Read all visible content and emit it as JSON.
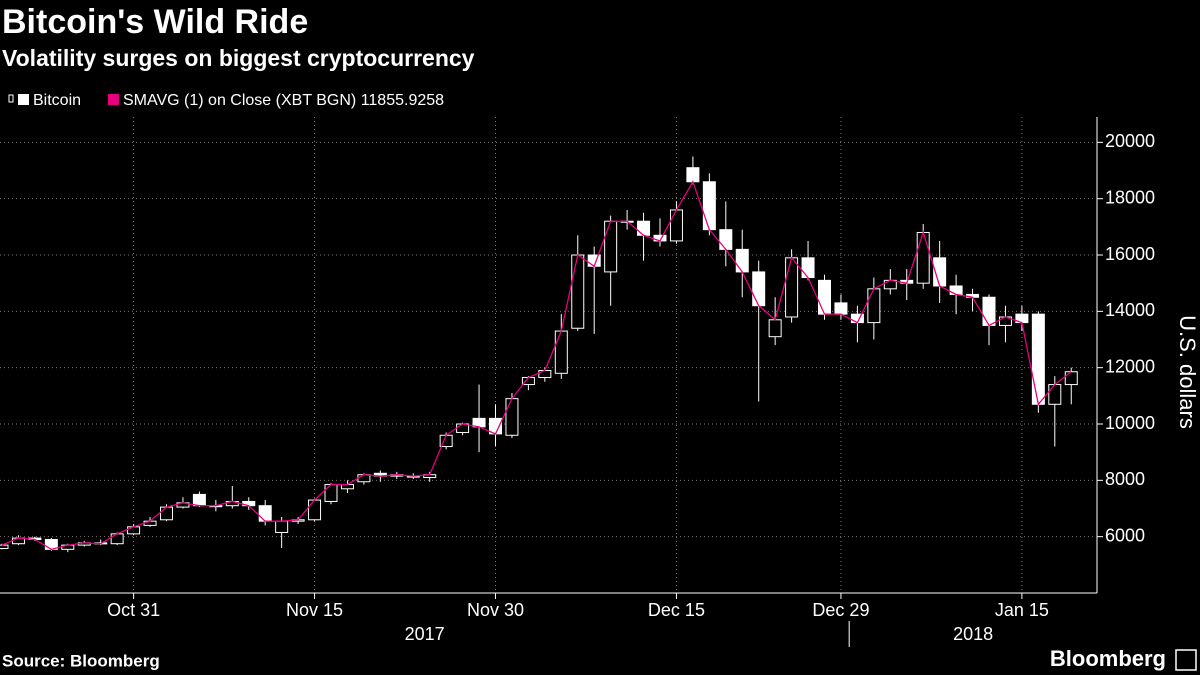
{
  "chart_data": {
    "type": "candlestick",
    "title": "Bitcoin's Wild Ride",
    "subtitle": "Volatility surges on biggest cryptocurrency",
    "y_label": "U.S. dollars",
    "source": "Source: Bloomberg",
    "brand": "Bloomberg",
    "categories": [
      "2017-10-19",
      "2017-10-20",
      "2017-10-23",
      "2017-10-24",
      "2017-10-25",
      "2017-10-26",
      "2017-10-27",
      "2017-10-30",
      "2017-10-31",
      "2017-11-01",
      "2017-11-02",
      "2017-11-03",
      "2017-11-06",
      "2017-11-07",
      "2017-11-08",
      "2017-11-09",
      "2017-11-10",
      "2017-11-13",
      "2017-11-14",
      "2017-11-15",
      "2017-11-16",
      "2017-11-17",
      "2017-11-20",
      "2017-11-21",
      "2017-11-22",
      "2017-11-23",
      "2017-11-24",
      "2017-11-27",
      "2017-11-28",
      "2017-11-29",
      "2017-11-30",
      "2017-12-01",
      "2017-12-04",
      "2017-12-05",
      "2017-12-06",
      "2017-12-07",
      "2017-12-08",
      "2017-12-11",
      "2017-12-12",
      "2017-12-13",
      "2017-12-14",
      "2017-12-15",
      "2017-12-18",
      "2017-12-19",
      "2017-12-20",
      "2017-12-21",
      "2017-12-22",
      "2017-12-25",
      "2017-12-26",
      "2017-12-27",
      "2017-12-28",
      "2017-12-29",
      "2018-01-01",
      "2018-01-02",
      "2018-01-03",
      "2018-01-04",
      "2018-01-05",
      "2018-01-08",
      "2018-01-09",
      "2018-01-10",
      "2018-01-11",
      "2018-01-12",
      "2018-01-15",
      "2018-01-16",
      "2018-01-17",
      "2018-01-18"
    ],
    "series": [
      {
        "name": "Bitcoin",
        "color": "#ffffff",
        "open": [
          5580,
          5750,
          5950,
          5900,
          5550,
          5700,
          5780,
          5750,
          6100,
          6400,
          6600,
          7050,
          7500,
          7100,
          7100,
          7250,
          7100,
          6150,
          6550,
          6600,
          7250,
          7700,
          7950,
          8250,
          8150,
          8150,
          8100,
          9200,
          9700,
          10200,
          10200,
          9600,
          11400,
          11650,
          11800,
          13400,
          16000,
          15400,
          17200,
          17200,
          16700,
          16500,
          19100,
          18600,
          16900,
          16200,
          15400,
          13100,
          13800,
          15900,
          15100,
          14300,
          13900,
          13600,
          14800,
          15100,
          15000,
          15900,
          14900,
          14600,
          14500,
          13500,
          13900,
          13900,
          10700,
          11400
        ],
        "high": [
          5750,
          6050,
          6000,
          5950,
          5750,
          5850,
          5900,
          6150,
          6450,
          6700,
          7150,
          7400,
          7600,
          7300,
          7800,
          7400,
          7300,
          6700,
          6700,
          7350,
          7900,
          8000,
          8250,
          8350,
          8300,
          8250,
          8300,
          9700,
          10050,
          11400,
          10700,
          11100,
          11700,
          12000,
          13900,
          16700,
          16300,
          17400,
          17600,
          17500,
          17300,
          17900,
          19500,
          18900,
          17900,
          16900,
          15800,
          14500,
          16200,
          16500,
          15300,
          14600,
          14200,
          15200,
          15500,
          15500,
          17100,
          16500,
          15300,
          14800,
          14600,
          14200,
          14200,
          14000,
          11700,
          12000
        ],
        "low": [
          5550,
          5700,
          5850,
          5500,
          5450,
          5650,
          5700,
          5700,
          6050,
          6350,
          6550,
          7000,
          7050,
          6900,
          7000,
          6950,
          6400,
          5600,
          6450,
          6550,
          7150,
          7550,
          7850,
          7950,
          8050,
          8050,
          7950,
          9100,
          9600,
          9000,
          9200,
          9500,
          11200,
          11500,
          11600,
          13300,
          13200,
          14200,
          16900,
          15800,
          16300,
          16400,
          18500,
          16700,
          15600,
          14500,
          10800,
          12800,
          13600,
          15100,
          13700,
          13700,
          12900,
          13000,
          14600,
          14400,
          14800,
          14300,
          13900,
          14000,
          12800,
          12900,
          13300,
          10400,
          9200,
          10700
        ],
        "close": [
          5700,
          5950,
          5900,
          5550,
          5700,
          5780,
          5750,
          6100,
          6350,
          6550,
          7050,
          7200,
          7100,
          7100,
          7250,
          7100,
          6550,
          6550,
          6600,
          7300,
          7850,
          7850,
          8200,
          8150,
          8200,
          8150,
          8200,
          9600,
          10000,
          9900,
          9650,
          10900,
          11650,
          11900,
          13300,
          16000,
          15600,
          17200,
          17200,
          16700,
          16500,
          17600,
          18600,
          16900,
          16200,
          15400,
          14200,
          13700,
          15900,
          15200,
          13900,
          13900,
          13600,
          14800,
          15100,
          15000,
          16800,
          14900,
          14600,
          14500,
          13500,
          13800,
          13600,
          10700,
          11400,
          11855.9258
        ]
      }
    ],
    "overlay": {
      "name": "SMAVG (1) on Close (XBT BGN) 11855.9258",
      "color": "#e6007e"
    },
    "ylim": [
      4000,
      20900
    ],
    "yticks": [
      6000,
      8000,
      10000,
      12000,
      14000,
      16000,
      18000,
      20000
    ],
    "xticks": [
      {
        "value": "2017-10-31",
        "label": "Oct 31"
      },
      {
        "value": "2017-11-15",
        "label": "Nov 15"
      },
      {
        "value": "2017-11-30",
        "label": "Nov 30"
      },
      {
        "value": "2017-12-15",
        "label": "Dec 15"
      },
      {
        "value": "2017-12-29",
        "label": "Dec 29"
      },
      {
        "value": "2018-01-15",
        "label": "Jan 15"
      }
    ],
    "years": [
      "2017",
      "2018"
    ],
    "grid": true
  }
}
